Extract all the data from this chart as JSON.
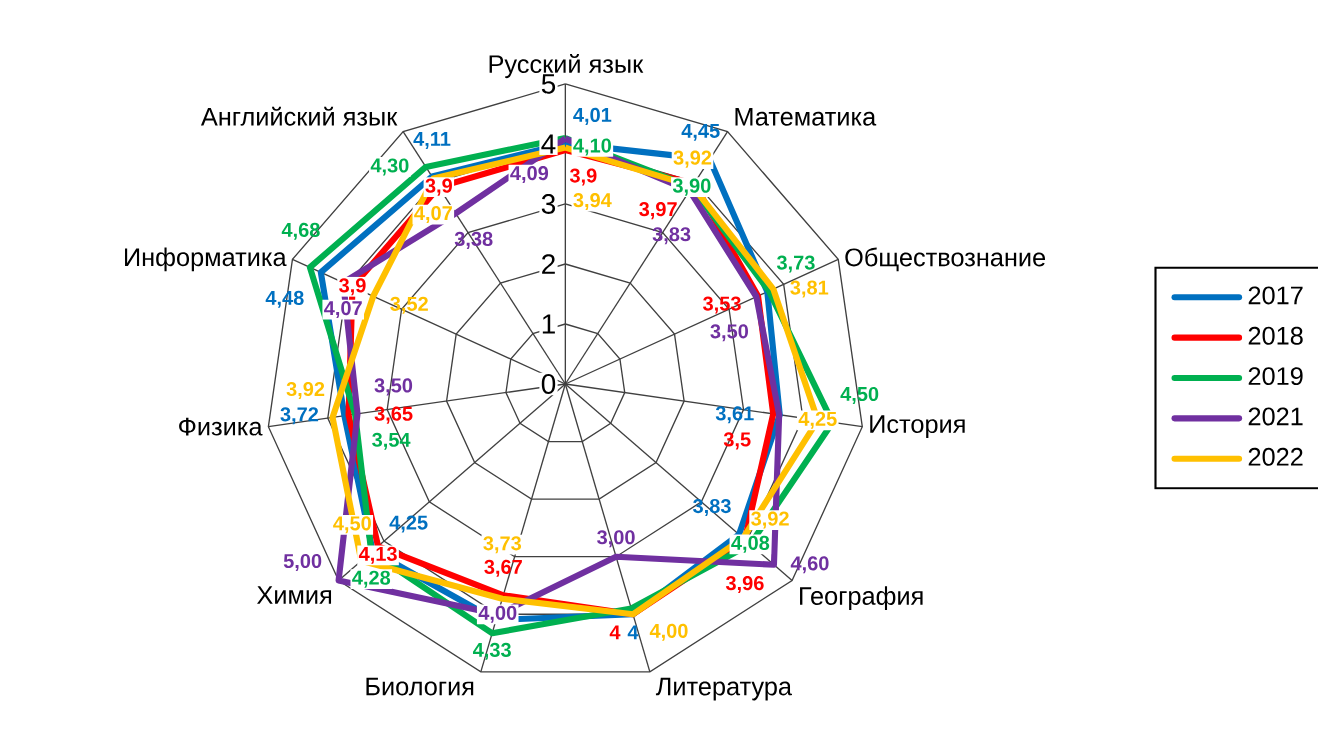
{
  "chart_data": {
    "type": "radar",
    "categories": [
      "Русский язык",
      "Математика",
      "Обществознание",
      "История",
      "География",
      "Литература",
      "Биология",
      "Химия",
      "Физика",
      "Информатика",
      "Английский язык"
    ],
    "ylim": [
      0,
      5
    ],
    "yticks": [
      0,
      1,
      2,
      3,
      4,
      5
    ],
    "grid": true,
    "legend": "right",
    "series": [
      {
        "name": "2017",
        "color": "#0070c0",
        "values": [
          4.01,
          4.45,
          3.7,
          3.61,
          3.83,
          4,
          4.1,
          4.25,
          3.72,
          4.48,
          4.11
        ],
        "value_labels": [
          "4,01",
          "4,45",
          null,
          "3,61",
          "3,83",
          "4",
          null,
          "4,25",
          "3,72",
          "4,48",
          "4,11"
        ]
      },
      {
        "name": "2018",
        "color": "#ff0000",
        "values": [
          3.9,
          3.97,
          3.53,
          3.5,
          3.96,
          4,
          3.67,
          4.13,
          3.65,
          3.9,
          3.9
        ],
        "value_labels": [
          "3,9",
          "3,97",
          "3,53",
          "3,5",
          "3,96",
          "4",
          "3,67",
          "4,13",
          "3,65",
          "3,9",
          "3,9"
        ]
      },
      {
        "name": "2019",
        "color": "#00b050",
        "values": [
          4.1,
          3.9,
          3.73,
          4.5,
          4.08,
          3.9,
          4.33,
          4.28,
          3.54,
          4.68,
          4.3
        ],
        "value_labels": [
          "4,10",
          "3,90",
          "3,73",
          "4,50",
          "4,08",
          null,
          "4,33",
          "4,28",
          "3,54",
          "4,68",
          "4,30"
        ]
      },
      {
        "name": "2021",
        "color": "#7030a0",
        "values": [
          4.09,
          3.83,
          3.5,
          3.6,
          4.6,
          3,
          4,
          5,
          3.5,
          4.07,
          3.38
        ],
        "value_labels": [
          "4,09",
          "3,83",
          "3,50",
          null,
          "4,60",
          "3,00",
          "4,00",
          "5,00",
          "3,50",
          "4,07",
          "3,38"
        ]
      },
      {
        "name": "2022",
        "color": "#ffc000",
        "values": [
          3.94,
          3.92,
          3.81,
          4.25,
          3.92,
          4,
          3.73,
          4.5,
          3.92,
          3.52,
          4.07
        ],
        "value_labels": [
          "3,94",
          "3,92",
          "3,81",
          "4,25",
          "3,92",
          "4,00",
          "3,73",
          "4,50",
          "3,92",
          "3,52",
          "4,07"
        ]
      }
    ]
  }
}
